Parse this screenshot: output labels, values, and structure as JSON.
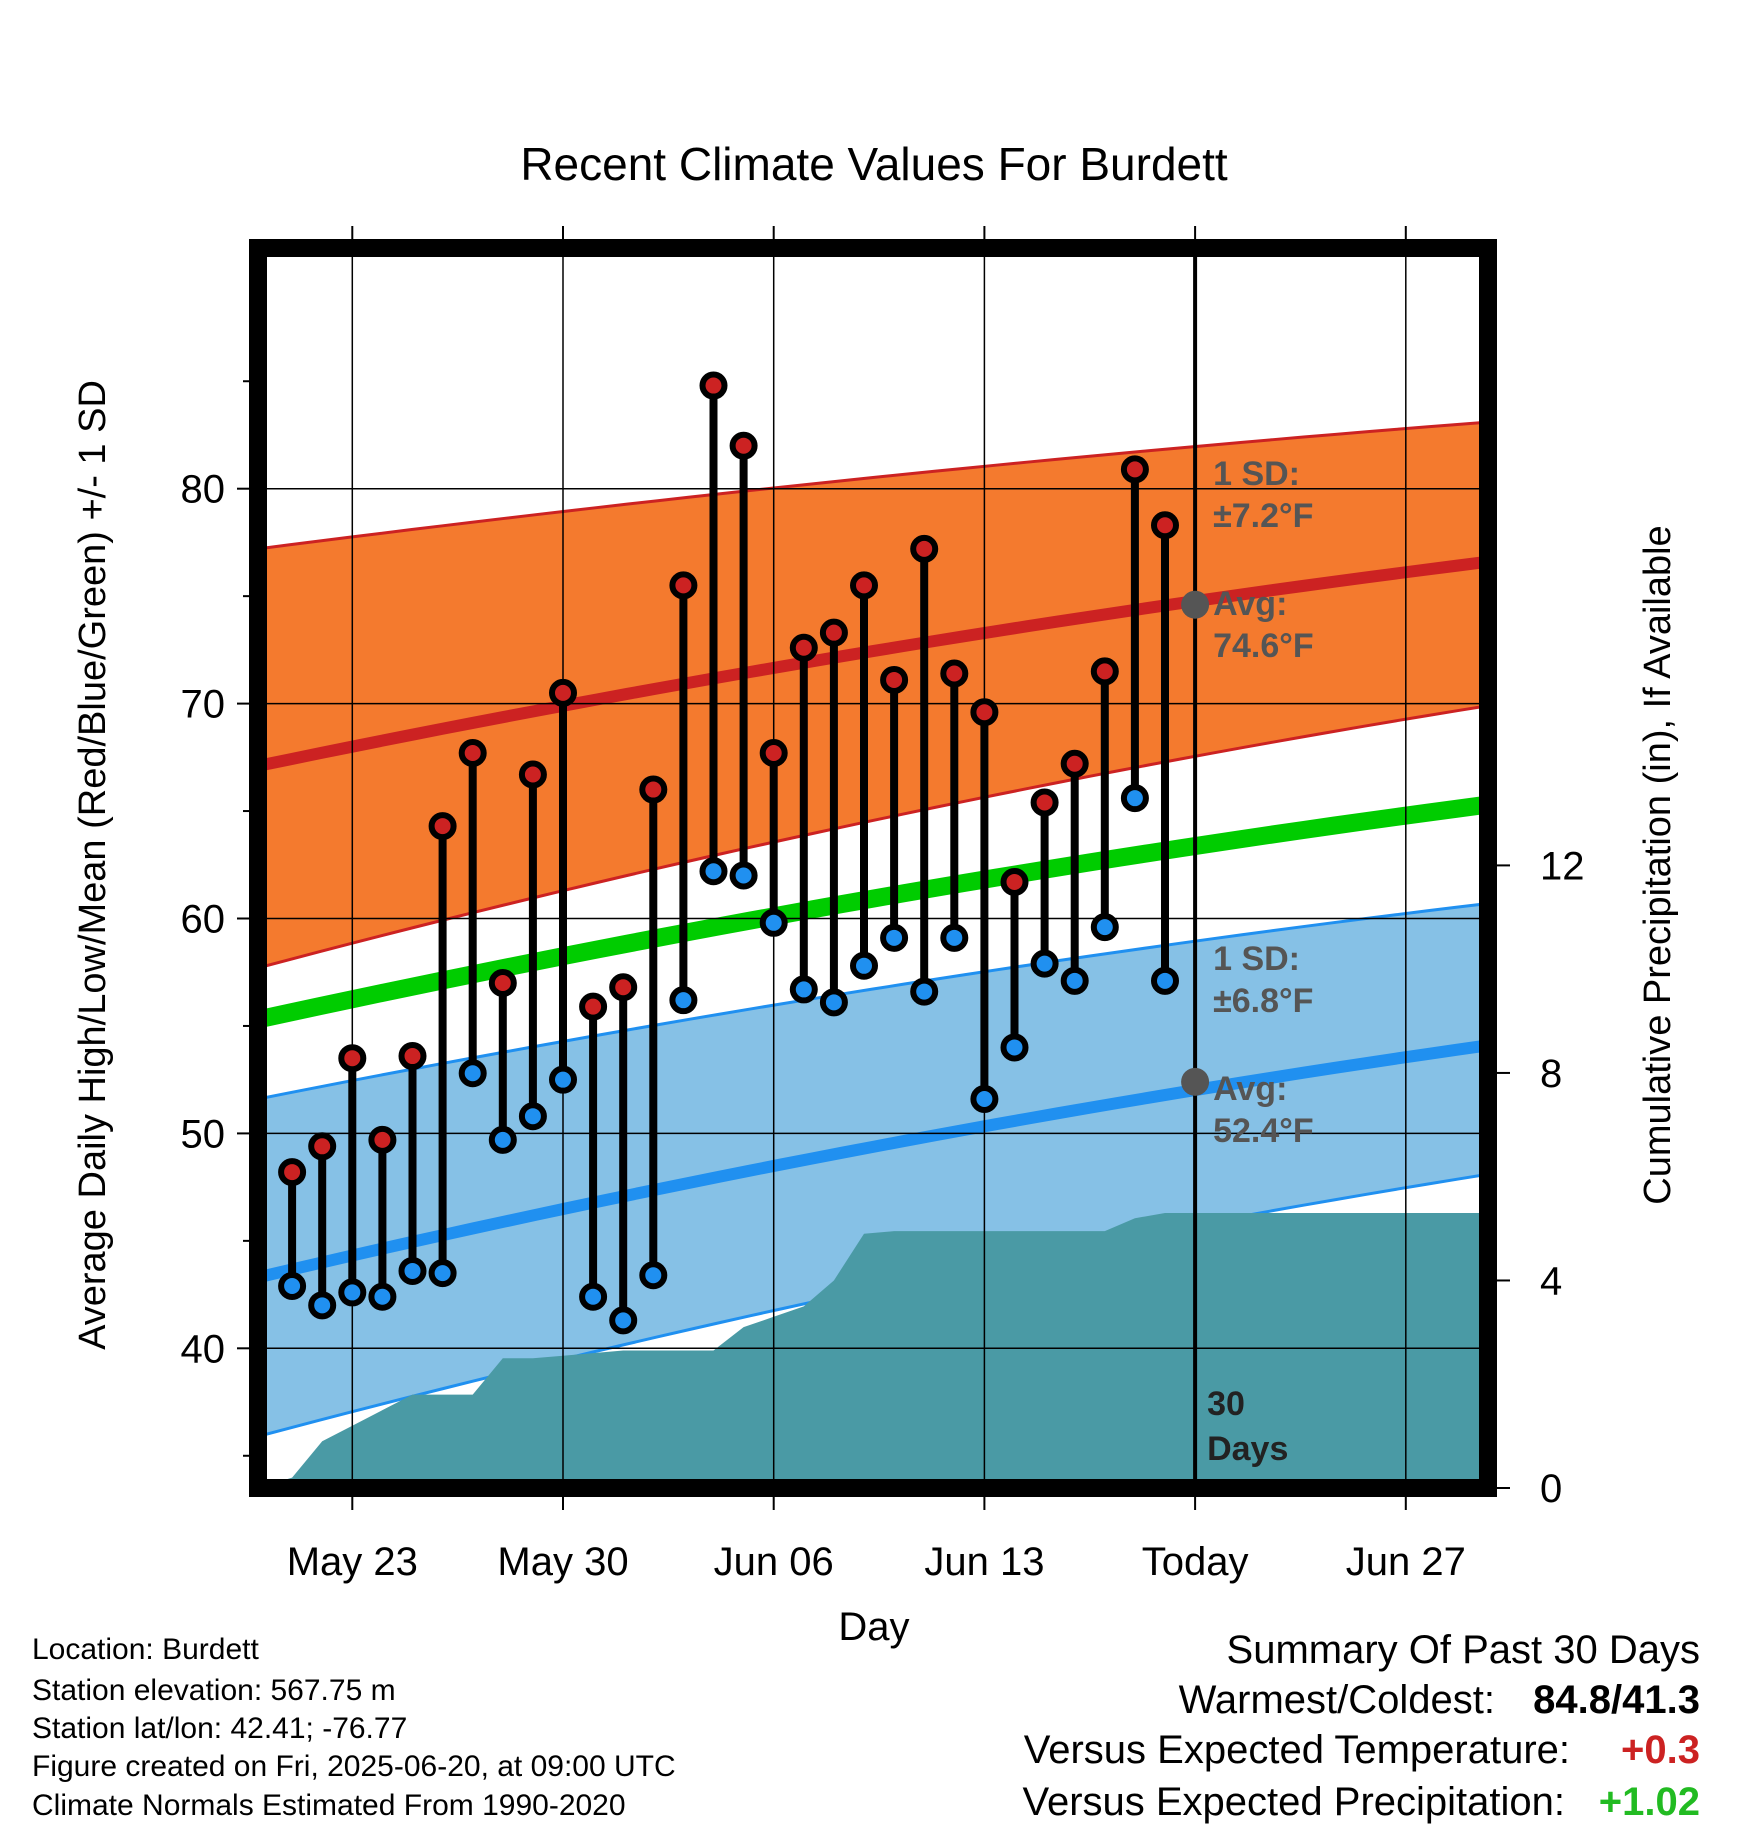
{
  "chart_data": {
    "type": "line",
    "title": "Recent Climate Values For Burdett",
    "xlabel": "Day",
    "ylabel": "Average Daily High/Low/Mean (Red/Blue/Green) +/- 1 SD",
    "y2label": "Cumulative Precipitation (in), If Available",
    "x_ticks": [
      "May 23",
      "May 30",
      "Jun 06",
      "Jun 13",
      "Today",
      "Jun 27"
    ],
    "y_ticks": [
      "40",
      "50",
      "60",
      "70",
      "80"
    ],
    "y2_ticks": [
      "0",
      "4",
      "8",
      "12"
    ],
    "ylim": [
      33.5,
      91.2
    ],
    "y2lim": [
      0,
      23.9
    ],
    "grid": true,
    "x_start_label": "May 20",
    "x_end_label": "Jul 1",
    "today_label": "Today",
    "days": [
      "May 21",
      "May 22",
      "May 23",
      "May 24",
      "May 25",
      "May 26",
      "May 27",
      "May 28",
      "May 29",
      "May 30",
      "May 31",
      "Jun 1",
      "Jun 2",
      "Jun 3",
      "Jun 4",
      "Jun 5",
      "Jun 6",
      "Jun 7",
      "Jun 8",
      "Jun 9",
      "Jun 10",
      "Jun 11",
      "Jun 12",
      "Jun 13",
      "Jun 14",
      "Jun 15",
      "Jun 16",
      "Jun 17",
      "Jun 18",
      "Jun 19"
    ],
    "series": [
      {
        "name": "High",
        "color": "#cc2222",
        "values": [
          48.2,
          49.4,
          53.5,
          49.7,
          53.6,
          64.3,
          67.7,
          57.0,
          66.7,
          70.5,
          55.9,
          56.8,
          66.0,
          75.5,
          84.8,
          82.0,
          67.7,
          72.6,
          73.3,
          75.5,
          71.1,
          77.2,
          71.4,
          69.6,
          61.7,
          65.4,
          67.2,
          71.5,
          80.9,
          78.3
        ]
      },
      {
        "name": "Low",
        "color": "#2090f0",
        "values": [
          42.9,
          42.0,
          42.6,
          42.4,
          43.6,
          43.5,
          52.8,
          49.7,
          50.8,
          52.5,
          42.4,
          41.3,
          43.4,
          56.2,
          62.2,
          62.0,
          59.8,
          56.7,
          56.1,
          57.8,
          59.1,
          56.6,
          59.1,
          51.6,
          54.0,
          57.9,
          57.1,
          59.6,
          65.6,
          57.1
        ]
      }
    ],
    "normals": {
      "high_avg": [
        67.1,
        76.6
      ],
      "high_sd_upper": [
        77.2,
        83.1
      ],
      "high_sd_lower": [
        57.7,
        69.9
      ],
      "mean_avg": [
        55.3,
        65.3
      ],
      "low_avg": [
        43.3,
        54.1
      ],
      "low_sd_upper": [
        51.6,
        60.7
      ],
      "low_sd_lower": [
        35.9,
        48.1
      ]
    },
    "precipitation_cumulative": [
      0.2,
      0.9,
      1.2,
      1.5,
      1.8,
      1.8,
      1.8,
      2.5,
      2.5,
      2.55,
      2.6,
      2.65,
      2.65,
      2.65,
      2.65,
      3.1,
      3.3,
      3.5,
      4.0,
      4.9,
      4.95,
      4.95,
      4.95,
      4.95,
      4.95,
      4.95,
      4.95,
      4.95,
      5.2,
      5.3
    ],
    "colors": {
      "high_band": "#f47a2e",
      "high_line": "#cc2222",
      "mean_line": "#00cc00",
      "low_band": "#86c1e6",
      "low_line": "#2090f0",
      "precip_fill": "#4a9aa5",
      "marker_today": "#555555"
    },
    "annotations": {
      "high_sd_label": "1 SD:",
      "high_sd_value": "±7.2°F",
      "high_avg_label": "Avg:",
      "high_avg_value": "74.6°F",
      "high_today_avg": 74.6,
      "low_sd_label": "1 SD:",
      "low_sd_value": "±6.8°F",
      "low_avg_label": "Avg:",
      "low_avg_value": "52.4°F",
      "low_today_avg": 52.4,
      "period_label_line1": "30",
      "period_label_line2": "Days"
    }
  },
  "footer": {
    "location": "Location: Burdett",
    "elevation": "Station elevation: 567.75 m",
    "latlon": "Station lat/lon: 42.41; -76.77",
    "created": "Figure created on Fri, 2025-06-20, at 09:00 UTC",
    "normals": "Climate Normals Estimated From 1990-2020"
  },
  "summary": {
    "title": "Summary Of Past 30 Days",
    "warm_cold_label": "Warmest/Coldest:",
    "warm_cold_value": "84.8/41.3",
    "temp_label": "Versus Expected Temperature:",
    "temp_value": "+0.3",
    "temp_color": "#cc2222",
    "precip_label": "Versus Expected Precipitation:",
    "precip_value": "+1.02",
    "precip_color": "#22bb22"
  }
}
